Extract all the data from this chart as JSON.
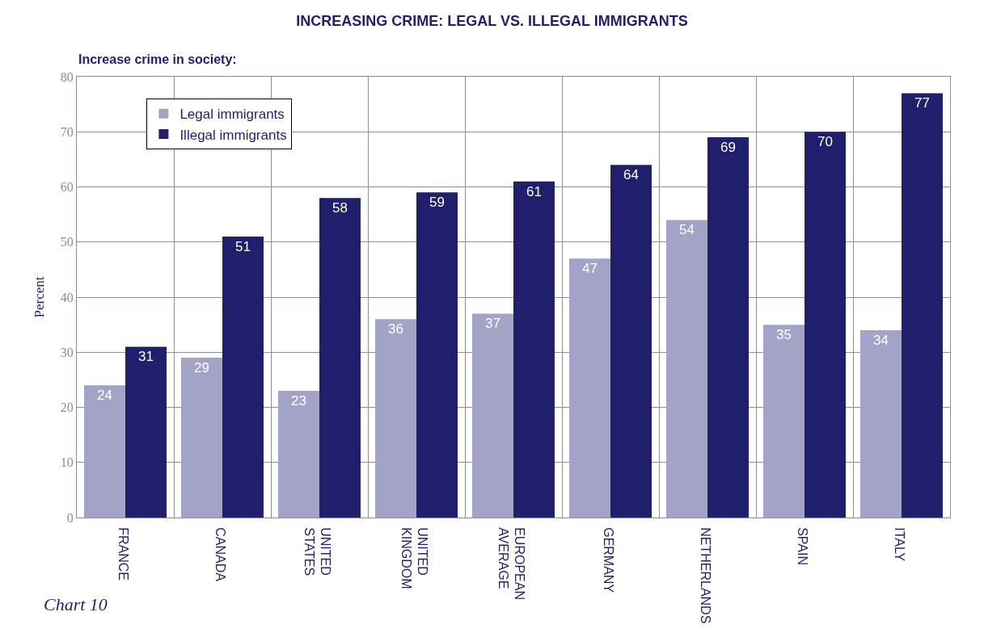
{
  "chart_data": {
    "type": "bar",
    "title": "INCREASING CRIME: LEGAL VS. ILLEGAL IMMIGRANTS",
    "subtitle": "Increase crime in society:",
    "ylabel": "Percent",
    "categories": [
      "FRANCE",
      "CANADA",
      "UNITED STATES",
      "UNITED KINGDOM",
      "EUROPEAN AVERAGE",
      "GERMANY",
      "NETHERLANDS",
      "SPAIN",
      "ITALY"
    ],
    "series": [
      {
        "name": "Legal immigrants",
        "color": "#a3a3c8",
        "values": [
          24,
          29,
          23,
          36,
          37,
          47,
          54,
          35,
          34
        ]
      },
      {
        "name": "Illegal immigrants",
        "color": "#1f1f6e",
        "values": [
          31,
          51,
          58,
          59,
          61,
          64,
          69,
          70,
          77
        ]
      }
    ],
    "ylim": [
      0,
      80
    ],
    "yticks": [
      0,
      10,
      20,
      30,
      40,
      50,
      60,
      70,
      80
    ],
    "grid": true,
    "legend": "top left",
    "data_labels": true,
    "annotations": [
      "Chart 10"
    ]
  }
}
